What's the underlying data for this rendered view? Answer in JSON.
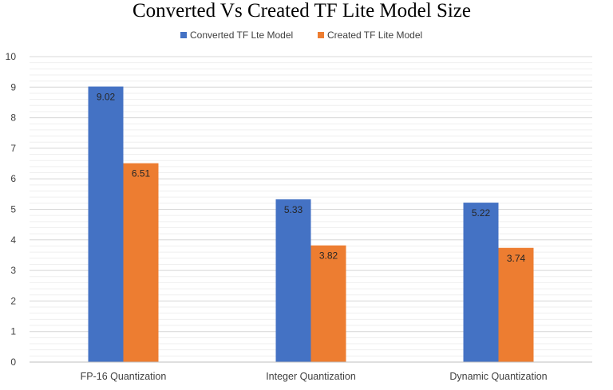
{
  "chart_data": {
    "type": "bar",
    "title": "Converted Vs Created TF Lite Model Size",
    "xlabel": "",
    "ylabel": "",
    "categories": [
      "FP-16 Quantization",
      "Integer Quantization",
      "Dynamic Quantization"
    ],
    "series": [
      {
        "name": "Converted TF Lte Model",
        "values": [
          9.02,
          5.33,
          5.22
        ],
        "color": "#4472C4"
      },
      {
        "name": "Created TF Lite Model",
        "values": [
          6.51,
          3.82,
          3.74
        ],
        "color": "#ED7D31"
      }
    ],
    "ylim": [
      0,
      10
    ],
    "yticks": [
      "0",
      "1",
      "2",
      "3",
      "4",
      "5",
      "6",
      "7",
      "8",
      "9",
      "10"
    ],
    "grid": true,
    "minor_grid": true,
    "legend": "top-center",
    "data_labels": true
  }
}
